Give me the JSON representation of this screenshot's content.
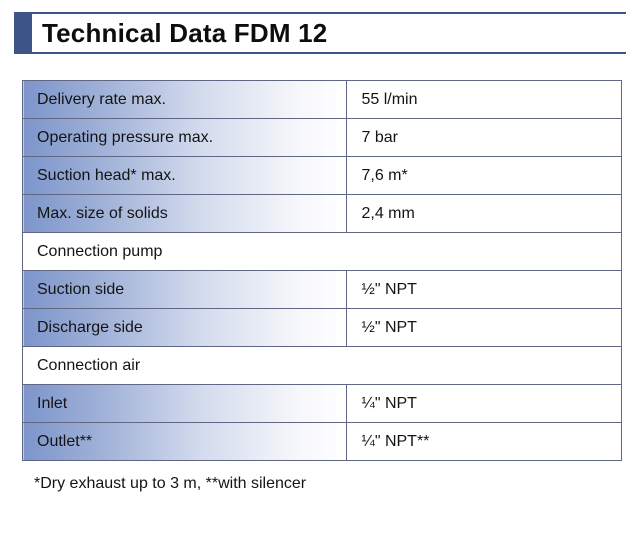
{
  "title": "Technical Data FDM 12",
  "colors": {
    "bar": "#3d5489",
    "border": "#5f6785",
    "gradient_start": "#7d95cb",
    "gradient_end": "#ffffff",
    "text": "#141414"
  },
  "table": {
    "rows": [
      {
        "type": "data",
        "label": "Delivery rate max.",
        "value": "55 l/min"
      },
      {
        "type": "data",
        "label": "Operating pressure max.",
        "value": "7 bar"
      },
      {
        "type": "data",
        "label": "Suction head* max.",
        "value": "7,6 m*"
      },
      {
        "type": "data",
        "label": "Max. size of solids",
        "value": "2,4 mm"
      },
      {
        "type": "section",
        "label": "Connection pump"
      },
      {
        "type": "data",
        "label": "Suction side",
        "value": "½\" NPT"
      },
      {
        "type": "data",
        "label": "Discharge side",
        "value": "½\" NPT"
      },
      {
        "type": "section",
        "label": "Connection air"
      },
      {
        "type": "data",
        "label": "Inlet",
        "value": "¼\" NPT"
      },
      {
        "type": "data",
        "label": "Outlet**",
        "value": "¼\" NPT**"
      }
    ]
  },
  "footnote": "*Dry exhaust up to 3 m, **with silencer"
}
